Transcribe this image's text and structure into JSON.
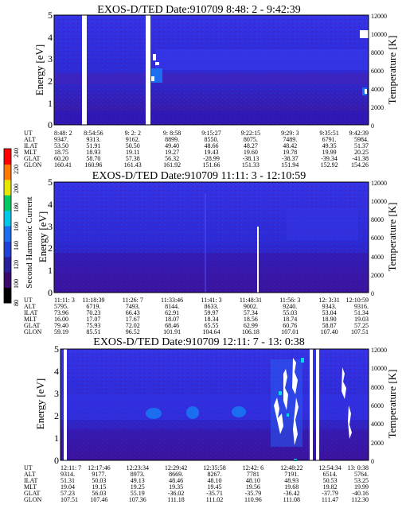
{
  "panels": [
    {
      "title": "EXOS-D/TED   Date:910709  8:48: 2 - 9:42:39",
      "ylabel": "Energy [eV]",
      "ylabel_right": "Temperature [K]",
      "ylim": [
        0,
        5
      ],
      "yticks": [
        "0",
        "1",
        "2",
        "3",
        "4",
        "5"
      ],
      "rticks": [
        "0",
        "2000",
        "4000",
        "6000",
        "8000",
        "10000",
        "12000"
      ],
      "row_labels": [
        "UT",
        "ALT",
        "ILAT",
        "MLT",
        "GLAT",
        "GLON"
      ],
      "columns": [
        [
          "8:48: 2",
          "9347.",
          "53.50",
          "18.75",
          "60.20",
          "160.41"
        ],
        [
          "8:54:56",
          "9313.",
          "51.91",
          "18.93",
          "58.70",
          "160.96"
        ],
        [
          "9: 2: 2",
          "9162.",
          "50.50",
          "19.11",
          "57.38",
          "161.43"
        ],
        [
          "9: 8:58",
          "8899.",
          "49.40",
          "19.27",
          "56.32",
          "161.92"
        ],
        [
          "9:15:27",
          "8550.",
          "48.66",
          "19.43",
          "-28.99",
          "151.66"
        ],
        [
          "9:22:15",
          "8075.",
          "48.27",
          "19.60",
          "-38.13",
          "151.33"
        ],
        [
          "9:29: 3",
          "7489.",
          "48.42",
          "19.78",
          "-38.37",
          "151.94"
        ],
        [
          "9:35:51",
          "6791.",
          "49.35",
          "19.99",
          "-39.34",
          "152.92"
        ],
        [
          "9:42:39",
          "5984.",
          "51.37",
          "20.25",
          "-41.38",
          "154.26"
        ]
      ]
    },
    {
      "title": "EXOS-D/TED   Date:910709  11:11: 3 - 12:10:59",
      "ylabel": "Energy [eV]",
      "ylabel_right": "Temperature [K]",
      "ylim": [
        0,
        5
      ],
      "yticks": [
        "0",
        "1",
        "2",
        "3",
        "4",
        "5"
      ],
      "rticks": [
        "0",
        "2000",
        "4000",
        "6000",
        "8000",
        "10000",
        "12000"
      ],
      "row_labels": [
        "UT",
        "ALT",
        "ILAT",
        "MLT",
        "GLAT",
        "GLON"
      ],
      "columns": [
        [
          "11:11: 3",
          "5795.",
          "73.96",
          "16.00",
          "79.40",
          "59.19"
        ],
        [
          "11:18:39",
          "6719.",
          "70.23",
          "17.07",
          "75.93",
          "85.51"
        ],
        [
          "11:26: 7",
          "7493.",
          "66.43",
          "17.67",
          "72.02",
          "96.52"
        ],
        [
          "11:33:46",
          "8144.",
          "62.91",
          "18.07",
          "68.46",
          "101.91"
        ],
        [
          "11:41: 3",
          "8633.",
          "59.97",
          "18.34",
          "65.55",
          "104.64"
        ],
        [
          "11:48:31",
          "9002.",
          "57.34",
          "18.56",
          "62.99",
          "106.18"
        ],
        [
          "11:56: 3",
          "9240.",
          "55.03",
          "18.74",
          "60.76",
          "107.01"
        ],
        [
          "12: 3:31",
          "9343.",
          "53.04",
          "18.90",
          "58.87",
          "107.40"
        ],
        [
          "12:10:59",
          "9316.",
          "51.34",
          "19.03",
          "57.25",
          "107.51"
        ]
      ]
    },
    {
      "title": "EXOS-D/TED   Date:910709  12:11: 7 - 13: 0:38",
      "ylabel": "Energy [eV]",
      "ylabel_right": "Temperature [K]",
      "ylim": [
        0,
        5
      ],
      "yticks": [
        "0",
        "1",
        "2",
        "3",
        "4",
        "5"
      ],
      "rticks": [
        "0",
        "2000",
        "4000",
        "6000",
        "8000",
        "10000",
        "12000"
      ],
      "row_labels": [
        "UT",
        "ALT",
        "ILAT",
        "MLT",
        "GLAT",
        "GLON"
      ],
      "columns": [
        [
          "12:11: 7",
          "9314.",
          "51.31",
          "19.04",
          "57.23",
          "107.51"
        ],
        [
          "12:17:46",
          "9177.",
          "50.03",
          "19.15",
          "56.03",
          "107.46"
        ],
        [
          "12:23:34",
          "8973.",
          "49.13",
          "19.25",
          "55.19",
          "107.36"
        ],
        [
          "12:29:42",
          "8669.",
          "48.46",
          "19.35",
          "-36.02",
          "111.18"
        ],
        [
          "12:35:58",
          "8267.",
          "48.10",
          "19.45",
          "-35.71",
          "111.02"
        ],
        [
          "12:42: 6",
          "7781",
          "48.10",
          "19.56",
          "-35.79",
          "110.96"
        ],
        [
          "12:48:22",
          "7191.",
          "48.93",
          "19.68",
          "-36.42",
          "111.08"
        ],
        [
          "12:54:34",
          "6514.",
          "50.53",
          "19.82",
          "-37.79",
          "111.47"
        ],
        [
          "13: 0:38",
          "5764.",
          "53.25",
          "19.99",
          "-40.16",
          "112.30"
        ]
      ]
    }
  ],
  "colorbar": {
    "label": "Second Harmonic Current",
    "ticks": [
      "80",
      "100",
      "120",
      "140",
      "160",
      "180",
      "200",
      "220",
      "240"
    ],
    "range": [
      80,
      240
    ],
    "colors": [
      "#000000",
      "#3a0a6a",
      "#2a1f9a",
      "#2040d8",
      "#1e6ef0",
      "#00c8e6",
      "#00c864",
      "#e6e600",
      "#ff7800",
      "#ff0000"
    ]
  },
  "chart_data": [
    {
      "type": "heatmap",
      "title": "EXOS-D/TED   Date:910709  8:48: 2 - 9:42:39",
      "xlabel": "UT",
      "ylabel": "Energy [eV]",
      "ylabel_right": "Temperature [K]",
      "x_ticks": [
        "8:48: 2",
        "8:54:56",
        "9: 2: 2",
        "9: 8:58",
        "9:15:27",
        "9:22:15",
        "9:29: 3",
        "9:35:51",
        "9:42:39"
      ],
      "ylim": [
        0,
        5
      ],
      "ylim_right": [
        0,
        12000
      ],
      "colorbar_label": "Second Harmonic Current",
      "color_range": [
        80,
        240
      ],
      "grid": false
    },
    {
      "type": "heatmap",
      "title": "EXOS-D/TED   Date:910709  11:11: 3 - 12:10:59",
      "xlabel": "UT",
      "ylabel": "Energy [eV]",
      "ylabel_right": "Temperature [K]",
      "x_ticks": [
        "11:11: 3",
        "11:18:39",
        "11:26: 7",
        "11:33:46",
        "11:41: 3",
        "11:48:31",
        "11:56: 3",
        "12: 3:31",
        "12:10:59"
      ],
      "ylim": [
        0,
        5
      ],
      "ylim_right": [
        0,
        12000
      ],
      "colorbar_label": "Second Harmonic Current",
      "color_range": [
        80,
        240
      ],
      "grid": false
    },
    {
      "type": "heatmap",
      "title": "EXOS-D/TED   Date:910709  12:11: 7 - 13: 0:38",
      "xlabel": "UT",
      "ylabel": "Energy [eV]",
      "ylabel_right": "Temperature [K]",
      "x_ticks": [
        "12:11: 7",
        "12:17:46",
        "12:23:34",
        "12:29:42",
        "12:35:58",
        "12:42: 6",
        "12:48:22",
        "12:54:34",
        "13: 0:38"
      ],
      "ylim": [
        0,
        5
      ],
      "ylim_right": [
        0,
        12000
      ],
      "colorbar_label": "Second Harmonic Current",
      "color_range": [
        80,
        240
      ],
      "grid": false
    }
  ]
}
